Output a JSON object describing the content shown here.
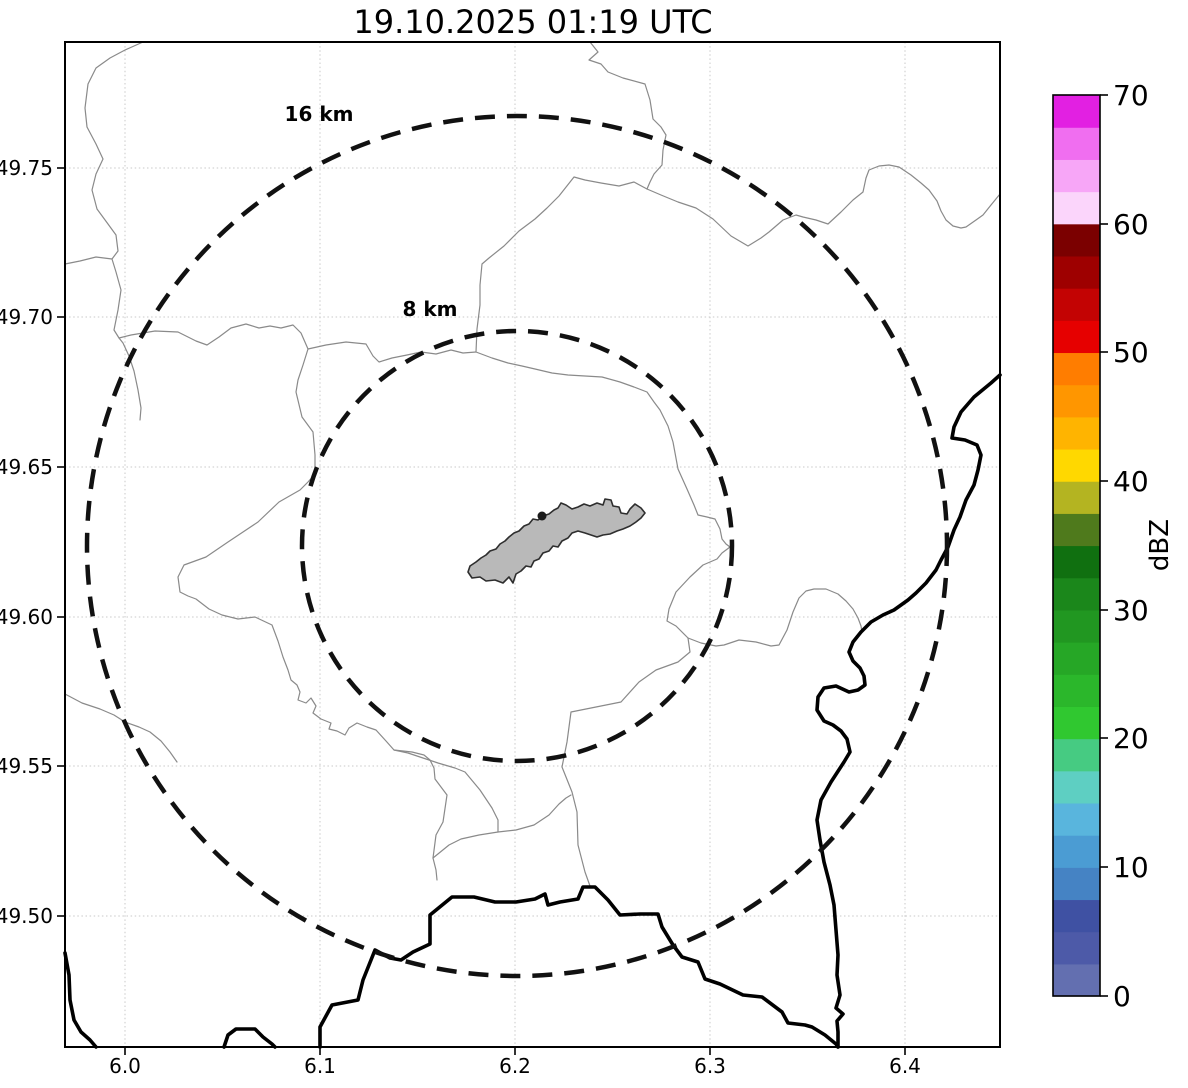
{
  "title": "19.10.2025 01:19 UTC",
  "axes": {
    "x_tick_labels": [
      "6.0",
      "6.1",
      "6.2",
      "6.3",
      "6.4"
    ],
    "y_tick_labels": [
      "49.75",
      "49.70",
      "49.65",
      "49.60",
      "49.55",
      "49.50"
    ]
  },
  "range_rings": {
    "outer_label": "16 km",
    "inner_label": "8 km"
  },
  "colorbar": {
    "unit": "dBZ",
    "tick_labels": [
      "70",
      "60",
      "50",
      "40",
      "30",
      "20",
      "10",
      "0"
    ],
    "value_min": 0,
    "value_max": 70,
    "band_step": 2.5,
    "band_colors_bottom_to_top": [
      "#636fb0",
      "#4d5aa8",
      "#3f51a3",
      "#4583c4",
      "#4b9cd3",
      "#59b5dd",
      "#5ecfc2",
      "#46cb82",
      "#30c830",
      "#2bb72b",
      "#26a726",
      "#219721",
      "#1b871b",
      "#107010",
      "#4f7a1c",
      "#b4b421",
      "#ffd800",
      "#ffb400",
      "#ff9600",
      "#ff7d00",
      "#e60000",
      "#c30303",
      "#9e0000",
      "#7b0000",
      "#fbd5fb",
      "#f7a6f7",
      "#f06ef0",
      "#e220e2"
    ]
  },
  "map": {
    "admin_line_color": "#8a8a8a",
    "national_border_color": "#000000",
    "city_fill_color": "#b9b9b9",
    "city_outline_color": "#2e2e2e",
    "ring_color": "#111111",
    "grid_color": "#c9c9c9",
    "marker_color": "#1a1a1a"
  }
}
